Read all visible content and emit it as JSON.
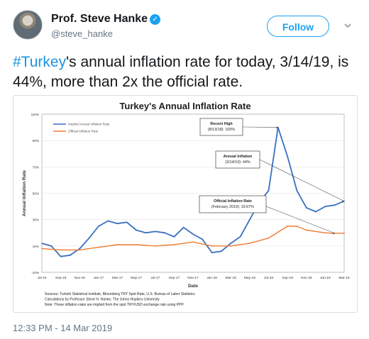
{
  "tweet": {
    "author": {
      "display_name": "Prof. Steve Hanke",
      "handle": "@steve_hanke",
      "verified": true
    },
    "follow_label": "Follow",
    "text": {
      "hashtag": "#Turkey",
      "body": "'s annual inflation rate for today, 3/14/19, is 44%, more than 2x the official rate."
    },
    "timestamp": "12:33 PM - 14 Mar 2019"
  },
  "icons": {
    "verified": "verified-badge-icon",
    "caret": "chevron-down-icon",
    "avatar": "avatar"
  },
  "colors": {
    "accent": "#1da1f2",
    "implied_series": "#3a6fc0",
    "official_series": "#ee7d31"
  },
  "chart_data": {
    "type": "line",
    "title": "Turkey's Annual Inflation Rate",
    "xlabel": "Date",
    "ylabel": "Annual Inflation Rate",
    "ylim": [
      -10,
      110
    ],
    "yticks": [
      -10,
      10,
      30,
      50,
      70,
      90,
      110
    ],
    "ytick_labels": [
      "-10%",
      "10%",
      "30%",
      "50%",
      "70%",
      "90%",
      "110%"
    ],
    "xtick_labels": [
      "Jul-16",
      "Sep-16",
      "Nov-16",
      "Jan-17",
      "Mar-17",
      "May-17",
      "Jul-17",
      "Sep-17",
      "Nov-17",
      "Jan-18",
      "Mar-18",
      "May-18",
      "Jul-18",
      "Sep-18",
      "Nov-18",
      "Jan-19",
      "Mar-19"
    ],
    "grid": true,
    "legend": "top-left",
    "series": [
      {
        "name": "Implied Annual Inflation Rate",
        "points": [
          [
            "Jul-16",
            12
          ],
          [
            "Aug-16",
            10
          ],
          [
            "Sep-16",
            2
          ],
          [
            "Oct-16",
            3
          ],
          [
            "Nov-16",
            8
          ],
          [
            "Dec-16",
            16
          ],
          [
            "Jan-17",
            25
          ],
          [
            "Feb-17",
            29
          ],
          [
            "Mar-17",
            27
          ],
          [
            "Apr-17",
            28
          ],
          [
            "May-17",
            22
          ],
          [
            "Jun-17",
            20
          ],
          [
            "Jul-17",
            21
          ],
          [
            "Aug-17",
            20
          ],
          [
            "Sep-17",
            17
          ],
          [
            "Oct-17",
            24
          ],
          [
            "Nov-17",
            19
          ],
          [
            "Dec-17",
            15
          ],
          [
            "Jan-18",
            5
          ],
          [
            "Feb-18",
            6
          ],
          [
            "Mar-18",
            12
          ],
          [
            "Apr-18",
            17
          ],
          [
            "May-18",
            30
          ],
          [
            "Jun-18",
            43
          ],
          [
            "Jul-18",
            52
          ],
          [
            "Aug-18",
            100
          ],
          [
            "Sep-18",
            78
          ],
          [
            "Oct-18",
            52
          ],
          [
            "Nov-18",
            39
          ],
          [
            "Dec-18",
            36
          ],
          [
            "Jan-19",
            40
          ],
          [
            "Feb-19",
            41
          ],
          [
            "Mar-19",
            44
          ]
        ]
      },
      {
        "name": "Official Inflation Rate",
        "points": [
          [
            "Jul-16",
            8
          ],
          [
            "Sep-16",
            7
          ],
          [
            "Nov-16",
            7
          ],
          [
            "Jan-17",
            9
          ],
          [
            "Mar-17",
            11
          ],
          [
            "May-17",
            11
          ],
          [
            "Jul-17",
            10
          ],
          [
            "Sep-17",
            11
          ],
          [
            "Nov-17",
            13
          ],
          [
            "Jan-18",
            10
          ],
          [
            "Mar-18",
            10
          ],
          [
            "May-18",
            12
          ],
          [
            "Jul-18",
            16
          ],
          [
            "Sep-18",
            25
          ],
          [
            "Oct-18",
            25
          ],
          [
            "Nov-18",
            22
          ],
          [
            "Jan-19",
            20
          ],
          [
            "Feb-19",
            19.67
          ],
          [
            "Mar-19",
            19.67
          ]
        ]
      }
    ],
    "annotations": [
      {
        "label": [
          "Recent High",
          "(8/13/18): 100%"
        ],
        "target": [
          "Aug-18",
          100
        ]
      },
      {
        "label": [
          "Annual Inflation",
          "(3/14/19): 44%"
        ],
        "target": [
          "Mar-19",
          44
        ]
      },
      {
        "label": [
          "Official Inflation Rate",
          "(February 2019): 19.67%"
        ],
        "target": [
          "Feb-19",
          19.67
        ]
      }
    ],
    "sources": [
      "Sources: Turkish Statistical Institute, Bloomberg TRY Spot Rate, U.S. Bureau of Labor Statistics",
      "Calculations by Professor Steve H. Hanke, The Johns Hopkins University",
      "Note: These inflation rates are implied from the spot TRY/USD exchange rate using PPP."
    ]
  }
}
